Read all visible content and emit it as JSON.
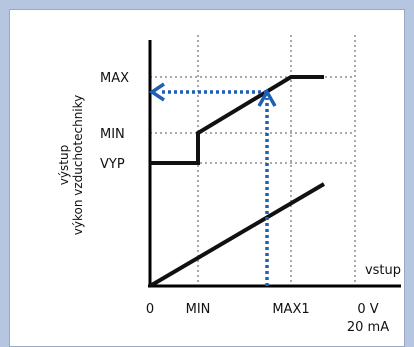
{
  "diagram": {
    "y_axis_title_line1": "výstup",
    "y_axis_title_line2": "výkon vzduchotechniky",
    "y_labels": {
      "max": "MAX",
      "min": "MIN",
      "off": "VYP"
    },
    "x_labels": {
      "origin": "0",
      "min": "MIN",
      "max1": "MAX1",
      "end_voltage": "0 V",
      "end_current": "20 mA"
    },
    "input_label": "vstup",
    "colors": {
      "background": "#b7c6e0",
      "curve": "#111111",
      "arrow": "#1f5fb4",
      "grid": "#555555"
    }
  }
}
